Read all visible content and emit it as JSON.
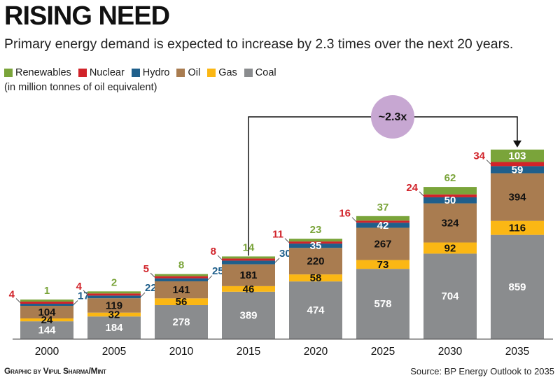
{
  "title": "RISING NEED",
  "subtitle": "Primary energy demand is expected to increase by 2.3 times over the next 20 years.",
  "unit_note": "(in million tonnes of oil equivalent)",
  "credit": "Graphic by Vipul Sharma/Mint",
  "source": "Source: BP Energy Outlook to 2035",
  "colors": {
    "Coal": "#8a8c8e",
    "Gas": "#fbb714",
    "Oil": "#a97c50",
    "Hydro": "#1f5f8b",
    "Nuclear": "#d1232a",
    "Renewables": "#7aa43a"
  },
  "chart_data": {
    "type": "bar",
    "stacked": true,
    "categories": [
      "2000",
      "2005",
      "2010",
      "2015",
      "2020",
      "2025",
      "2030",
      "2035"
    ],
    "series": [
      {
        "name": "Coal",
        "values": [
          144,
          184,
          278,
          389,
          474,
          578,
          704,
          859
        ]
      },
      {
        "name": "Gas",
        "values": [
          24,
          32,
          56,
          46,
          58,
          73,
          92,
          116
        ]
      },
      {
        "name": "Oil",
        "values": [
          104,
          119,
          141,
          181,
          220,
          267,
          324,
          394
        ]
      },
      {
        "name": "Hydro",
        "values": [
          17,
          22,
          25,
          30,
          35,
          42,
          50,
          59
        ]
      },
      {
        "name": "Nuclear",
        "values": [
          4,
          4,
          5,
          8,
          11,
          16,
          24,
          34
        ]
      },
      {
        "name": "Renewables",
        "values": [
          1,
          2,
          8,
          14,
          23,
          37,
          62,
          103
        ]
      }
    ],
    "legend_order": [
      "Renewables",
      "Nuclear",
      "Hydro",
      "Oil",
      "Gas",
      "Coal"
    ],
    "legend_position": "top-left",
    "annotation": {
      "text": "~2.3x",
      "from": "2015",
      "to": "2035"
    },
    "grid": false
  }
}
